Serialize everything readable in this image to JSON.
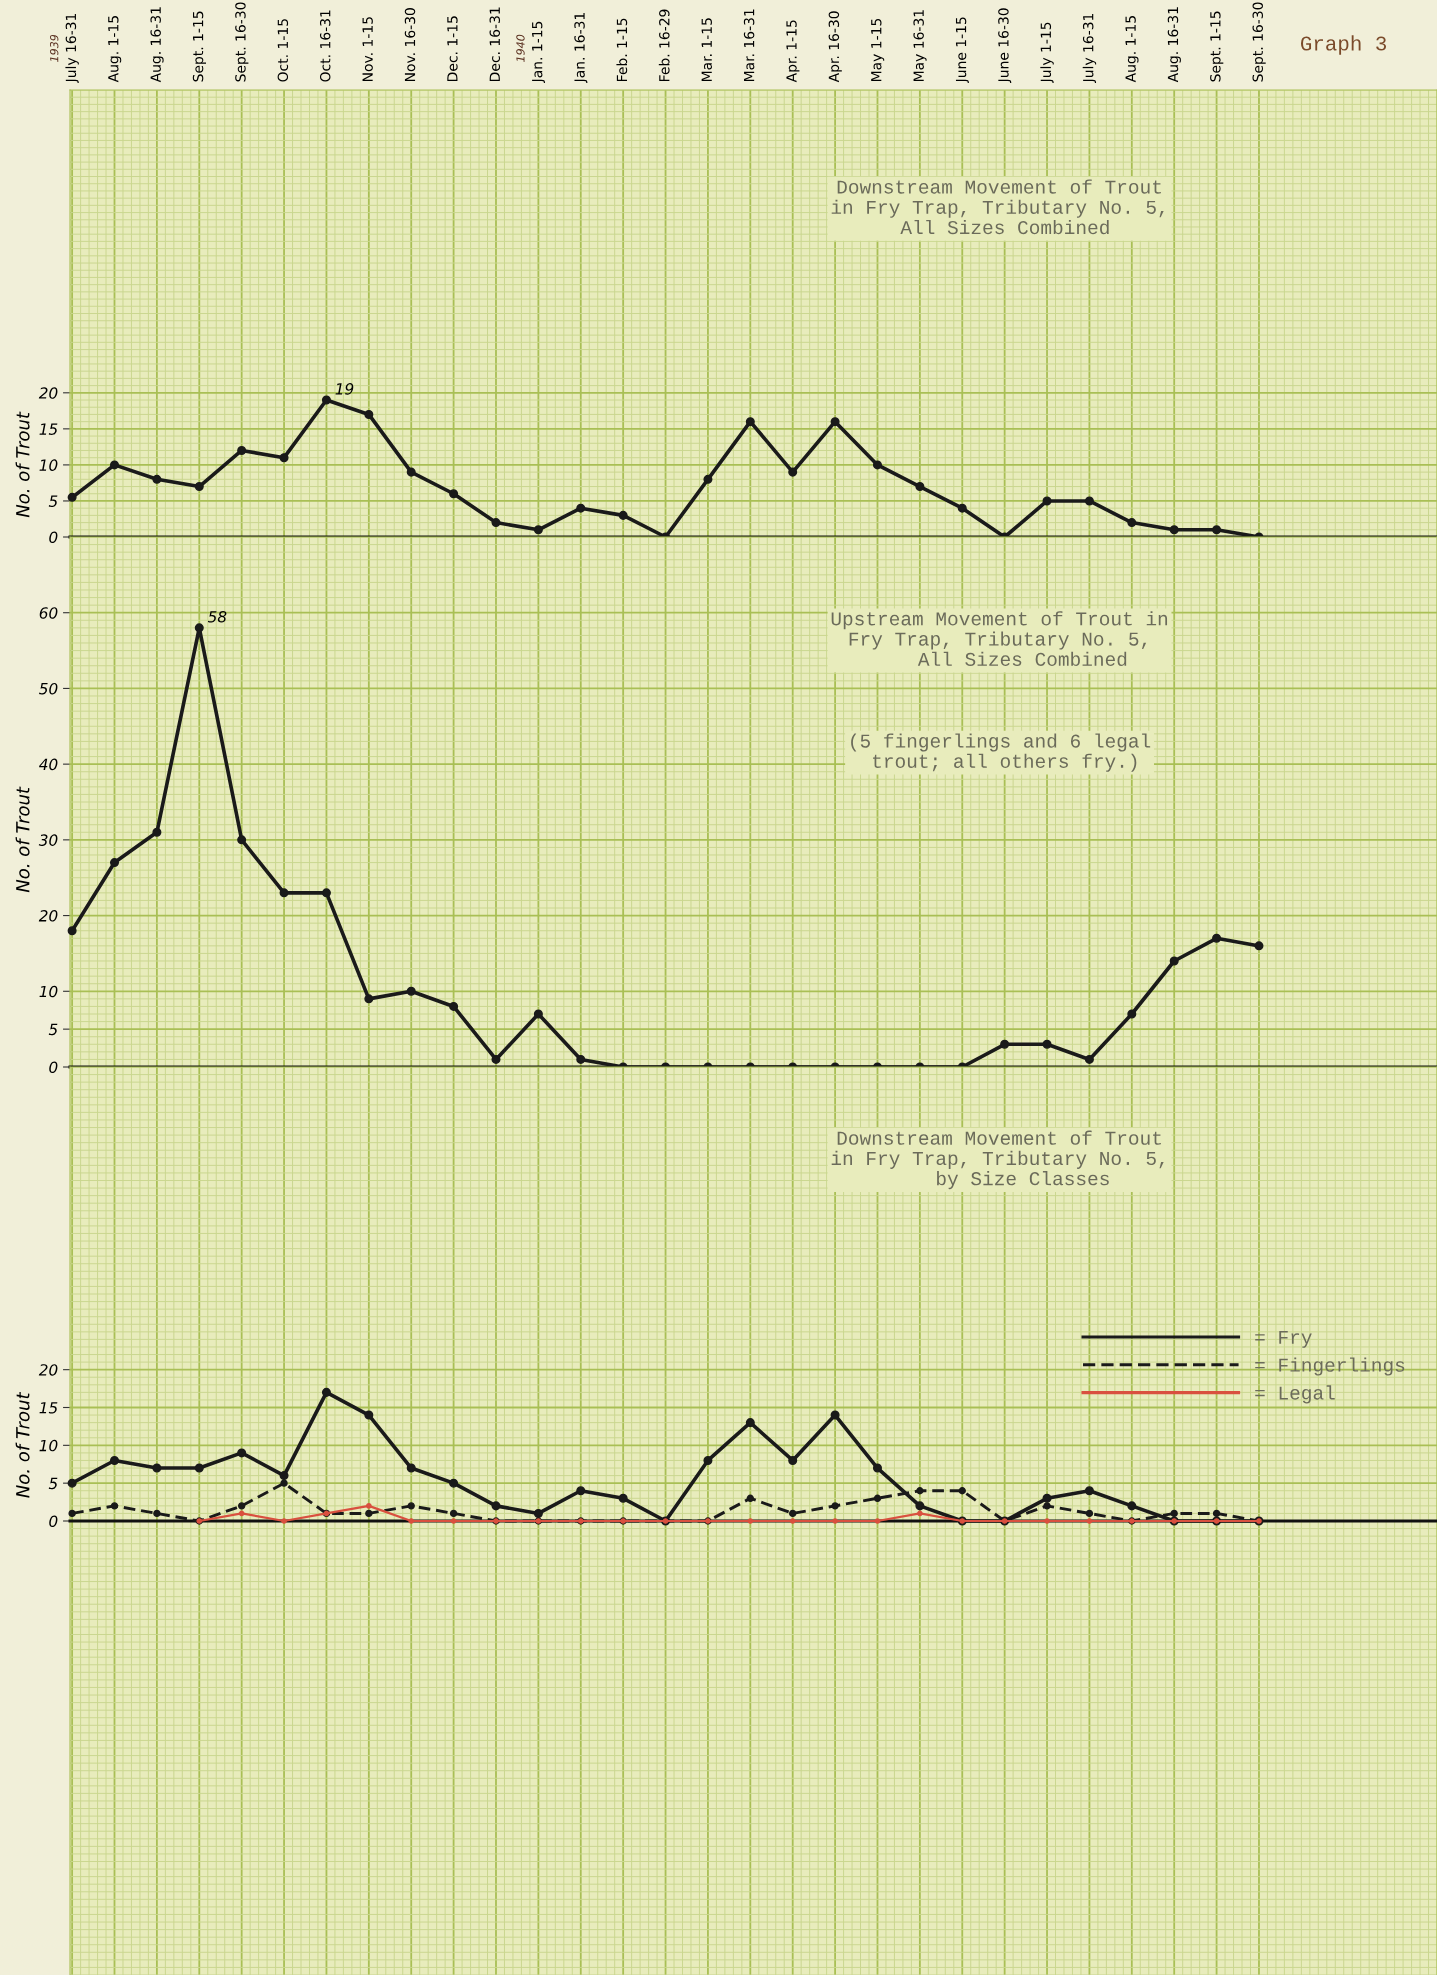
{
  "chart_data": [
    {
      "type": "line",
      "title": "Downstream Movement of Trout\nin Fry Trap, Tributary No. 5,\n All Sizes Combined",
      "ylabel": "No. of Trout",
      "categories": [
        "July 16-31",
        "Aug. 1-15",
        "Aug. 16-31",
        "Sept. 1-15",
        "Sept. 16-30",
        "Oct. 1-15",
        "Oct. 16-31",
        "Nov. 1-15",
        "Nov. 16-30",
        "Dec. 1-15",
        "Dec. 16-31",
        "Jan. 1-15",
        "Jan. 16-31",
        "Feb. 1-15",
        "Feb. 16-29",
        "Mar. 1-15",
        "Mar. 16-31",
        "Apr. 1-15",
        "Apr. 16-30",
        "May 1-15",
        "May 16-31",
        "June 1-15",
        "June 16-30",
        "July 1-15",
        "July 16-31",
        "Aug. 1-15",
        "Aug. 16-31",
        "Sept. 1-15",
        "Sept. 16-30"
      ],
      "series": [
        {
          "color": "#1a1a1a",
          "values": [
            5.5,
            10,
            8,
            7,
            12,
            11,
            19,
            17,
            9,
            6,
            2,
            1,
            4,
            3,
            0,
            8,
            16,
            9,
            16,
            10,
            7,
            4,
            0,
            5,
            5,
            2,
            1,
            1,
            0
          ],
          "value_labels": [
            null,
            null,
            null,
            null,
            null,
            null,
            "19",
            null,
            null,
            null,
            null,
            null,
            null,
            null,
            null,
            null,
            null,
            null,
            null,
            null,
            null,
            null,
            null,
            null,
            null,
            null,
            null,
            null,
            null
          ]
        }
      ],
      "ylim": [
        0,
        62
      ],
      "yticks": [
        0,
        5,
        10,
        15,
        20
      ],
      "grid": true,
      "marker": "circle",
      "line_style": "solid",
      "annotations": [
        "Graph 3",
        "1939",
        "1940"
      ]
    },
    {
      "type": "line",
      "title": "Upstream Movement of Trout in\nFry Trap, Tributary No. 5,\n    All Sizes Combined",
      "subtitle": "(5 fingerlings and 6 legal\n trout; all others fry.)",
      "ylabel": "No. of Trout",
      "categories": [
        null,
        null,
        null,
        null,
        null,
        null,
        null,
        null,
        null,
        null,
        null,
        null,
        null,
        null,
        null,
        null,
        null,
        null,
        null,
        null,
        null,
        null,
        null,
        null,
        null,
        null,
        null,
        null,
        null
      ],
      "series": [
        {
          "color": "#1a1a1a",
          "values": [
            18,
            27,
            31,
            58,
            30,
            23,
            23,
            9,
            10,
            8,
            1,
            7,
            1,
            0,
            0,
            0,
            0,
            0,
            0,
            0,
            0,
            0,
            3,
            3,
            1,
            7,
            14,
            17,
            16
          ],
          "value_labels": [
            null,
            null,
            null,
            "58",
            null,
            null,
            null,
            null,
            null,
            null,
            null,
            null,
            null,
            null,
            null,
            null,
            null,
            null,
            null,
            null,
            null,
            null,
            null,
            null,
            null,
            null,
            null,
            null,
            null
          ]
        }
      ],
      "ylim": [
        0,
        70
      ],
      "yticks": [
        0,
        5,
        10,
        20,
        30,
        40,
        50,
        60
      ],
      "grid": true,
      "marker": "circle",
      "line_style": "solid",
      "tick_labels": "y"
    },
    {
      "type": "line",
      "title": "Downstream Movement of Trout\nin Fry Trap, Tributary No. 5,\n    by Size Classes",
      "ylabel": "No. of Trout",
      "categories": [
        null,
        null,
        null,
        null,
        null,
        null,
        null,
        null,
        null,
        null,
        null,
        null,
        null,
        null,
        null,
        null,
        null,
        null,
        null,
        null,
        null,
        null,
        null,
        null,
        null,
        null,
        null,
        null,
        null
      ],
      "series": [
        {
          "name": "= Fry",
          "color": "#1a1a1a",
          "line_style": "solid",
          "values": [
            5,
            8,
            7,
            7,
            9,
            6,
            17,
            14,
            7,
            5,
            2,
            1,
            4,
            3,
            0,
            8,
            13,
            8,
            14,
            7,
            2,
            0,
            0,
            3,
            4,
            2,
            0,
            0,
            0
          ]
        },
        {
          "name": "= Fingerlings",
          "color": "#1a1a1a",
          "line_style": "dashed",
          "values": [
            1,
            2,
            1,
            0,
            2,
            5,
            1,
            1,
            2,
            1,
            0,
            0,
            0,
            0,
            0,
            0,
            3,
            1,
            2,
            3,
            4,
            4,
            0,
            2,
            1,
            0,
            1,
            1,
            0
          ]
        },
        {
          "name": "= Legal",
          "color": "#d9503f",
          "line_style": "solid",
          "values": [
            null,
            null,
            null,
            0,
            1,
            0,
            1,
            2,
            0,
            0,
            0,
            0,
            0,
            0,
            0,
            0,
            0,
            0,
            0,
            0,
            1,
            0,
            0,
            0,
            0,
            0,
            0,
            0,
            0
          ]
        }
      ],
      "ylim": [
        -60,
        60
      ],
      "yticks": [
        0,
        5,
        10,
        15,
        20
      ],
      "grid": true,
      "marker": "circle",
      "legend": "top right",
      "tick_labels": "y"
    }
  ]
}
